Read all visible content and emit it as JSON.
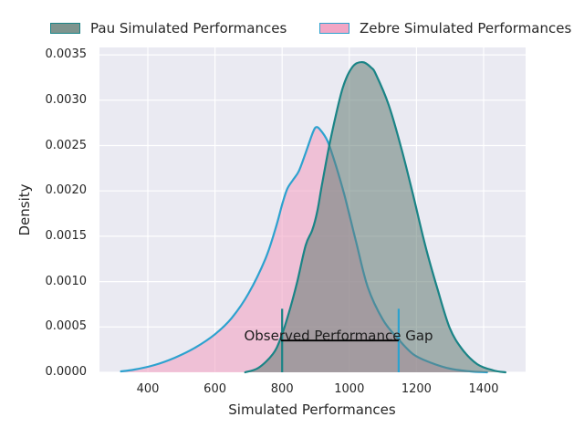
{
  "colors": {
    "plot_background": "#eaeaf2",
    "grid": "#ffffff",
    "text": "#262626"
  },
  "chart_data": {
    "type": "area",
    "subtype": "kde-density",
    "title": "",
    "xlabel": "Simulated Performances",
    "ylabel": "Density",
    "xlim": [
      256,
      1525
    ],
    "ylim": [
      0,
      0.00358
    ],
    "grid": "on",
    "legend_position": "top",
    "x_ticks": [
      {
        "value": 400,
        "label": "400"
      },
      {
        "value": 600,
        "label": "600"
      },
      {
        "value": 800,
        "label": "800"
      },
      {
        "value": 1000,
        "label": "1000"
      },
      {
        "value": 1200,
        "label": "1200"
      },
      {
        "value": 1400,
        "label": "1400"
      }
    ],
    "y_ticks": [
      {
        "value": 0.0,
        "label": "0.0000"
      },
      {
        "value": 0.0005,
        "label": "0.0005"
      },
      {
        "value": 0.001,
        "label": "0.0010"
      },
      {
        "value": 0.0015,
        "label": "0.0015"
      },
      {
        "value": 0.002,
        "label": "0.0020"
      },
      {
        "value": 0.0025,
        "label": "0.0025"
      },
      {
        "value": 0.003,
        "label": "0.0030"
      },
      {
        "value": 0.0035,
        "label": "0.0035"
      }
    ],
    "series": [
      {
        "name": "zebre",
        "legend_label": "Zebre Simulated Performances",
        "line_color": "#2da2cf",
        "fill_color": "#f2a6c5",
        "fill_opacity": 0.62,
        "swatch_fill": "#f2a6c5",
        "peak": {
          "x": 900,
          "density": 0.0027
        },
        "points": [
          [
            320,
            1e-05
          ],
          [
            360,
            3e-05
          ],
          [
            420,
            8e-05
          ],
          [
            480,
            0.00016
          ],
          [
            540,
            0.00027
          ],
          [
            600,
            0.00042
          ],
          [
            650,
            0.0006
          ],
          [
            700,
            0.00087
          ],
          [
            750,
            0.00125
          ],
          [
            780,
            0.00158
          ],
          [
            800,
            0.00185
          ],
          [
            815,
            0.00202
          ],
          [
            832,
            0.00212
          ],
          [
            850,
            0.00222
          ],
          [
            870,
            0.00242
          ],
          [
            890,
            0.00263
          ],
          [
            900,
            0.0027
          ],
          [
            912,
            0.00268
          ],
          [
            935,
            0.00255
          ],
          [
            960,
            0.00228
          ],
          [
            985,
            0.00196
          ],
          [
            1020,
            0.00144
          ],
          [
            1055,
            0.00094
          ],
          [
            1100,
            0.00058
          ],
          [
            1145,
            0.00037
          ],
          [
            1190,
            0.0002
          ],
          [
            1240,
            0.00011
          ],
          [
            1300,
            4e-05
          ],
          [
            1360,
            1e-05
          ],
          [
            1410,
            0
          ]
        ]
      },
      {
        "name": "pau",
        "legend_label": "Pau Simulated Performances",
        "line_color": "#1a8486",
        "fill_color": "#647c74",
        "fill_opacity": 0.55,
        "swatch_fill": "#7e948e",
        "peak": {
          "x": 1040,
          "density": 0.0034
        },
        "points": [
          [
            690,
            0
          ],
          [
            730,
            5e-05
          ],
          [
            772,
            0.0002
          ],
          [
            794,
            0.00036
          ],
          [
            818,
            0.00063
          ],
          [
            845,
            0.001
          ],
          [
            870,
            0.0014
          ],
          [
            890,
            0.00157
          ],
          [
            905,
            0.00178
          ],
          [
            920,
            0.0021
          ],
          [
            946,
            0.0026
          ],
          [
            980,
            0.00313
          ],
          [
            1010,
            0.00337
          ],
          [
            1040,
            0.00342
          ],
          [
            1065,
            0.00336
          ],
          [
            1080,
            0.00328
          ],
          [
            1117,
            0.00295
          ],
          [
            1155,
            0.00247
          ],
          [
            1191,
            0.00194
          ],
          [
            1226,
            0.0014
          ],
          [
            1264,
            0.0009
          ],
          [
            1299,
            0.00049
          ],
          [
            1335,
            0.00026
          ],
          [
            1381,
            9e-05
          ],
          [
            1430,
            2e-05
          ],
          [
            1465,
            0
          ]
        ]
      }
    ],
    "legend_order": [
      "pau",
      "zebre"
    ],
    "vlines": [
      {
        "x": 800,
        "y_top": 0.0007,
        "color": "#1a8486"
      },
      {
        "x": 1147,
        "y_top": 0.0007,
        "color": "#2da2cf"
      }
    ],
    "gap_line": {
      "x1": 797,
      "x2": 1147,
      "y": 0.00035,
      "color": "#000000"
    },
    "annotation": {
      "text": "Observed Performance Gap",
      "x": 968,
      "y": 0.0004
    }
  }
}
